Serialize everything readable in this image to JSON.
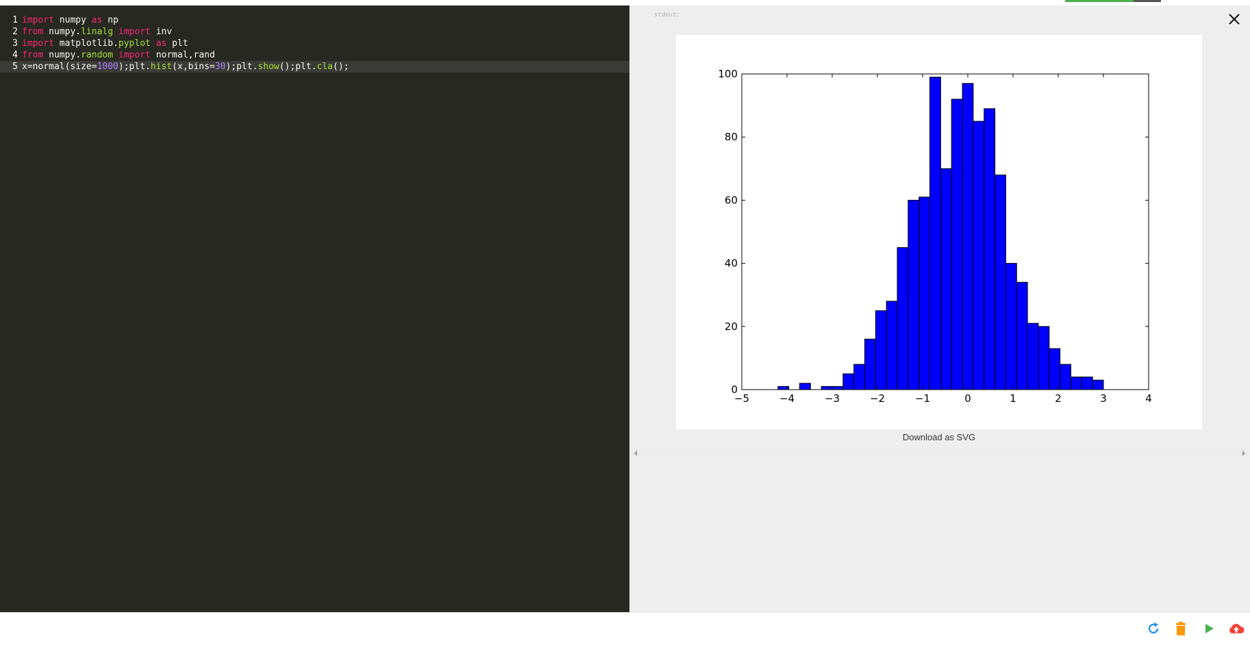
{
  "editor": {
    "lines": [
      {
        "num": "1",
        "tokens": [
          {
            "t": "import",
            "c": "kw"
          },
          {
            "t": " numpy ",
            "c": ""
          },
          {
            "t": "as",
            "c": "kw"
          },
          {
            "t": " np",
            "c": ""
          }
        ]
      },
      {
        "num": "2",
        "tokens": [
          {
            "t": "from",
            "c": "kw"
          },
          {
            "t": " numpy.",
            "c": ""
          },
          {
            "t": "linalg",
            "c": "mod"
          },
          {
            "t": " ",
            "c": ""
          },
          {
            "t": "import",
            "c": "kw"
          },
          {
            "t": " inv",
            "c": ""
          }
        ]
      },
      {
        "num": "3",
        "tokens": [
          {
            "t": "import",
            "c": "kw"
          },
          {
            "t": " matplotlib.",
            "c": ""
          },
          {
            "t": "pyplot",
            "c": "mod"
          },
          {
            "t": " ",
            "c": ""
          },
          {
            "t": "as",
            "c": "kw"
          },
          {
            "t": " plt",
            "c": ""
          }
        ]
      },
      {
        "num": "4",
        "tokens": [
          {
            "t": "from",
            "c": "kw"
          },
          {
            "t": " numpy.",
            "c": ""
          },
          {
            "t": "random",
            "c": "mod"
          },
          {
            "t": " ",
            "c": ""
          },
          {
            "t": "import",
            "c": "kw"
          },
          {
            "t": " normal,rand",
            "c": ""
          }
        ]
      },
      {
        "num": "5",
        "tokens": [
          {
            "t": "x=normal(size=",
            "c": ""
          },
          {
            "t": "1000",
            "c": "num"
          },
          {
            "t": ");plt.",
            "c": ""
          },
          {
            "t": "hist",
            "c": "mod"
          },
          {
            "t": "(x,bins=",
            "c": ""
          },
          {
            "t": "30",
            "c": "num"
          },
          {
            "t": ");plt.",
            "c": ""
          },
          {
            "t": "show",
            "c": "mod"
          },
          {
            "t": "();plt.",
            "c": ""
          },
          {
            "t": "cla",
            "c": "mod"
          },
          {
            "t": "();",
            "c": ""
          }
        ]
      }
    ]
  },
  "output": {
    "stdout_label": "stdout:",
    "download_label": "Download as SVG"
  },
  "icons": {
    "close": "close-icon",
    "refresh": "refresh-icon",
    "delete": "trash-icon",
    "run": "play-icon",
    "upload": "cloud-upload-icon"
  },
  "colors": {
    "editor_bg": "#272822",
    "bar_fill": "#0000ff",
    "refresh": "#2196f3",
    "delete": "#ff9800",
    "run": "#4caf50",
    "upload": "#f44336"
  },
  "chart_data": {
    "type": "bar",
    "title": "",
    "xlabel": "",
    "ylabel": "",
    "xlim": [
      -5,
      4
    ],
    "ylim": [
      0,
      100
    ],
    "xticks": [
      "−5",
      "−4",
      "−3",
      "−2",
      "−1",
      "0",
      "1",
      "2",
      "3",
      "4"
    ],
    "xtick_values": [
      -5,
      -4,
      -3,
      -2,
      -1,
      0,
      1,
      2,
      3,
      4
    ],
    "yticks": [
      "0",
      "20",
      "40",
      "60",
      "80",
      "100"
    ],
    "ytick_values": [
      0,
      20,
      40,
      60,
      80,
      100
    ],
    "bin_start": -4.2,
    "bin_width": 0.24,
    "values": [
      1,
      0,
      2,
      0,
      1,
      1,
      5,
      8,
      16,
      25,
      28,
      45,
      60,
      61,
      99,
      70,
      92,
      97,
      85,
      89,
      68,
      40,
      34,
      21,
      20,
      13,
      8,
      4,
      4,
      3
    ],
    "grid": false
  }
}
